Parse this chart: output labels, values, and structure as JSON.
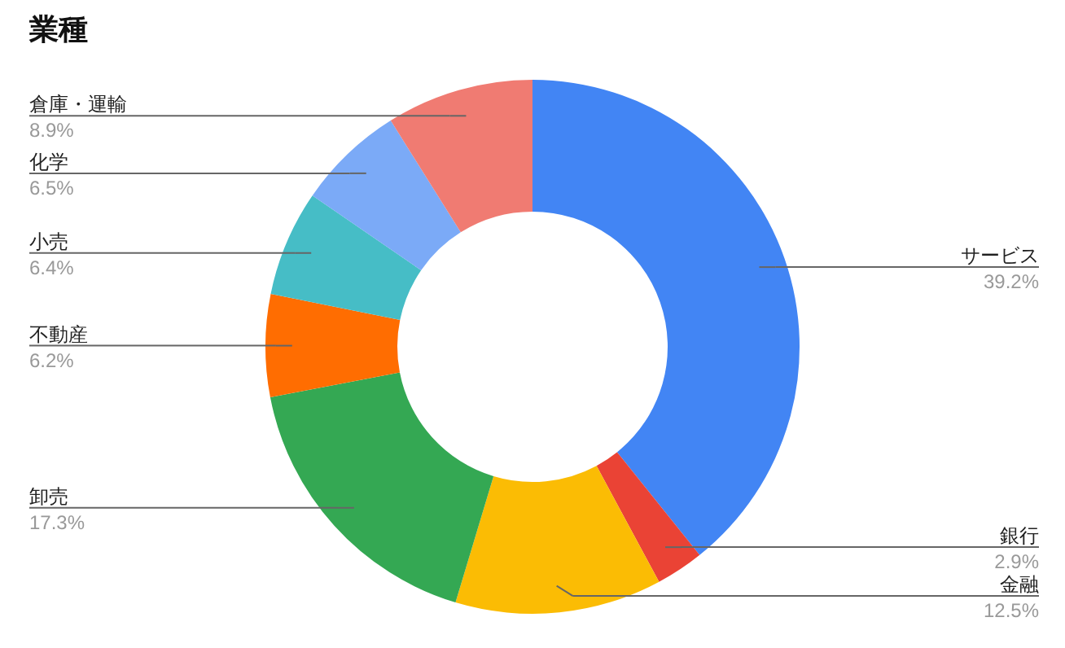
{
  "chart_data": {
    "type": "donut",
    "title": "業種",
    "categories": [
      "サービス",
      "銀行",
      "金融",
      "卸売",
      "不動産",
      "小売",
      "化学",
      "倉庫・運輸"
    ],
    "values": [
      39.2,
      2.9,
      12.5,
      17.3,
      6.2,
      6.4,
      6.5,
      8.9
    ],
    "value_labels": [
      "39.2%",
      "2.9%",
      "12.5%",
      "17.3%",
      "6.2%",
      "6.4%",
      "6.5%",
      "8.9%"
    ],
    "colors": [
      "#4285f4",
      "#ea4335",
      "#fbbc04",
      "#34a853",
      "#ff6d01",
      "#46bdc6",
      "#7baaf7",
      "#f07b72"
    ],
    "legend": false
  }
}
